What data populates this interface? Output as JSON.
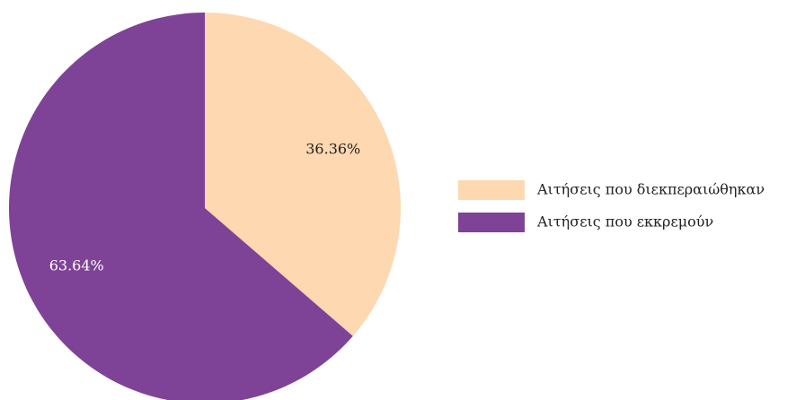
{
  "chart_data": {
    "type": "pie",
    "title": "",
    "start_angle_deg": 0,
    "direction": "clockwise",
    "slices": [
      {
        "label": "Αιτήσεις που διεκπεραιώθηκαν",
        "value": 36.36,
        "display_label": "36.36%",
        "color": "#fdd8b0",
        "label_color": "#222222"
      },
      {
        "label": "Αιτήσεις που εκκρεμούν",
        "value": 63.64,
        "display_label": "63.64%",
        "color": "#7e4396",
        "label_color": "#ffffff"
      }
    ],
    "legend": {
      "position": "right"
    }
  }
}
